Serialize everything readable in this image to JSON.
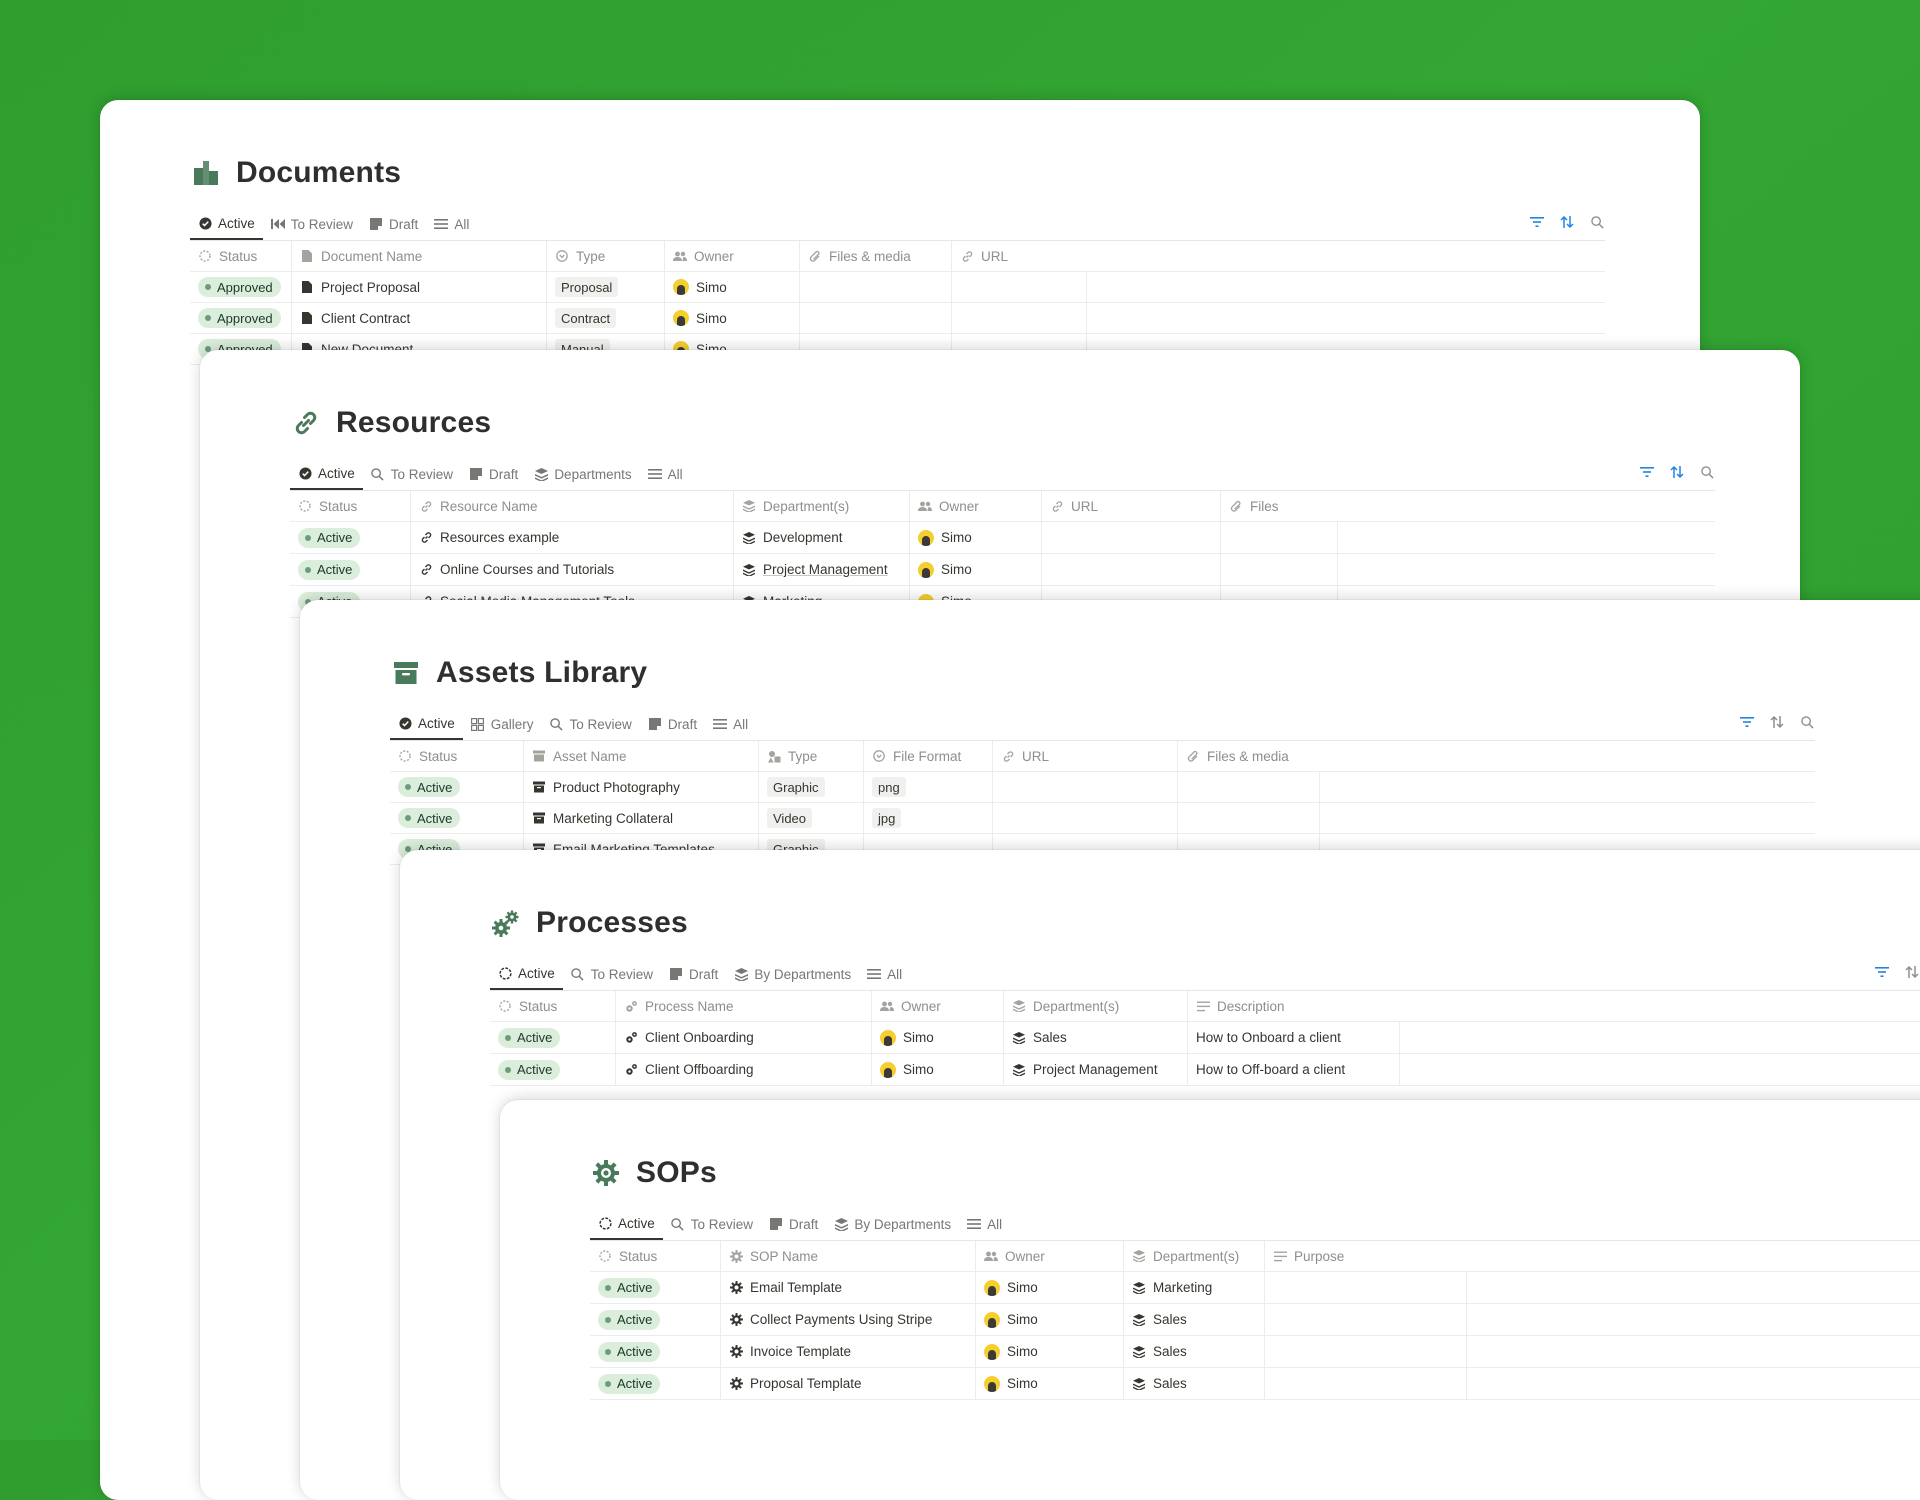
{
  "colors": {
    "background": "#2f9e2f",
    "badge_bg": "#dbeddb",
    "badge_dot": "#6c9b7d",
    "accent_icon": "#4a7a5c",
    "filter_blue": "#2383e2"
  },
  "documents": {
    "title": "Documents",
    "icon": "documents-icon",
    "tabs": [
      {
        "label": "Active",
        "icon": "check-circle-icon",
        "active": true
      },
      {
        "label": "To Review",
        "icon": "rewind-icon"
      },
      {
        "label": "Draft",
        "icon": "note-icon"
      },
      {
        "label": "All",
        "icon": "list-icon"
      }
    ],
    "columns": [
      {
        "label": "Status",
        "icon": "status-icon"
      },
      {
        "label": "Document Name",
        "icon": "page-icon"
      },
      {
        "label": "Type",
        "icon": "select-icon"
      },
      {
        "label": "Owner",
        "icon": "people-icon"
      },
      {
        "label": "Files & media",
        "icon": "paperclip-icon"
      },
      {
        "label": "URL",
        "icon": "link-icon"
      }
    ],
    "rows": [
      {
        "status": "Approved",
        "name": "Project Proposal",
        "type": "Proposal",
        "owner": "Simo"
      },
      {
        "status": "Approved",
        "name": "Client Contract",
        "type": "Contract",
        "owner": "Simo"
      },
      {
        "status": "Approved",
        "name": "New Document",
        "type": "Manual",
        "owner": "Simo"
      }
    ]
  },
  "resources": {
    "title": "Resources",
    "icon": "link-icon",
    "tabs": [
      {
        "label": "Active",
        "icon": "check-circle-icon",
        "active": true
      },
      {
        "label": "To Review",
        "icon": "search-icon"
      },
      {
        "label": "Draft",
        "icon": "note-icon"
      },
      {
        "label": "Departments",
        "icon": "layers-icon"
      },
      {
        "label": "All",
        "icon": "list-icon"
      }
    ],
    "columns": [
      {
        "label": "Status",
        "icon": "status-icon"
      },
      {
        "label": "Resource Name",
        "icon": "link-icon"
      },
      {
        "label": "Department(s)",
        "icon": "layers-icon"
      },
      {
        "label": "Owner",
        "icon": "people-icon"
      },
      {
        "label": "URL",
        "icon": "link-icon"
      },
      {
        "label": "Files",
        "icon": "paperclip-icon"
      }
    ],
    "rows": [
      {
        "status": "Active",
        "name": "Resources example",
        "department": "Development",
        "owner": "Simo"
      },
      {
        "status": "Active",
        "name": "Online Courses and Tutorials",
        "department": "Project Management",
        "owner": "Simo"
      },
      {
        "status": "Active",
        "name": "Social Media Management Tools",
        "department": "Marketing",
        "owner": "Simo"
      }
    ]
  },
  "assets": {
    "title": "Assets Library",
    "icon": "archive-icon",
    "tabs": [
      {
        "label": "Active",
        "icon": "check-circle-icon",
        "active": true
      },
      {
        "label": "Gallery",
        "icon": "gallery-icon"
      },
      {
        "label": "To Review",
        "icon": "search-icon"
      },
      {
        "label": "Draft",
        "icon": "note-icon"
      },
      {
        "label": "All",
        "icon": "list-icon"
      }
    ],
    "columns": [
      {
        "label": "Status",
        "icon": "status-icon"
      },
      {
        "label": "Asset Name",
        "icon": "archive-icon"
      },
      {
        "label": "Type",
        "icon": "shapes-icon"
      },
      {
        "label": "File Format",
        "icon": "select-icon"
      },
      {
        "label": "URL",
        "icon": "link-icon"
      },
      {
        "label": "Files & media",
        "icon": "paperclip-icon"
      }
    ],
    "rows": [
      {
        "status": "Active",
        "name": "Product Photography",
        "type": "Graphic",
        "format": "png"
      },
      {
        "status": "Active",
        "name": "Marketing Collateral",
        "type": "Video",
        "format": "jpg"
      },
      {
        "status": "Active",
        "name": "Email Marketing Templates",
        "type": "Graphic",
        "format": ""
      }
    ]
  },
  "processes": {
    "title": "Processes",
    "icon": "gears-icon",
    "tabs": [
      {
        "label": "Active",
        "icon": "dashed-circle-icon",
        "active": true
      },
      {
        "label": "To Review",
        "icon": "search-icon"
      },
      {
        "label": "Draft",
        "icon": "note-icon"
      },
      {
        "label": "By Departments",
        "icon": "layers-icon"
      },
      {
        "label": "All",
        "icon": "list-icon"
      }
    ],
    "columns": [
      {
        "label": "Status",
        "icon": "status-icon"
      },
      {
        "label": "Process Name",
        "icon": "gears-icon"
      },
      {
        "label": "Owner",
        "icon": "people-icon"
      },
      {
        "label": "Department(s)",
        "icon": "layers-icon"
      },
      {
        "label": "Description",
        "icon": "text-icon"
      }
    ],
    "rows": [
      {
        "status": "Active",
        "name": "Client Onboarding",
        "owner": "Simo",
        "department": "Sales",
        "description": "How to Onboard a client"
      },
      {
        "status": "Active",
        "name": "Client Offboarding",
        "owner": "Simo",
        "department": "Project Management",
        "description": "How to Off-board a client"
      }
    ]
  },
  "sops": {
    "title": "SOPs",
    "icon": "gear-icon",
    "tabs": [
      {
        "label": "Active",
        "icon": "dashed-circle-icon",
        "active": true
      },
      {
        "label": "To Review",
        "icon": "search-icon"
      },
      {
        "label": "Draft",
        "icon": "note-icon"
      },
      {
        "label": "By Departments",
        "icon": "layers-icon"
      },
      {
        "label": "All",
        "icon": "list-icon"
      }
    ],
    "columns": [
      {
        "label": "Status",
        "icon": "status-icon"
      },
      {
        "label": "SOP Name",
        "icon": "gear-icon"
      },
      {
        "label": "Owner",
        "icon": "people-icon"
      },
      {
        "label": "Department(s)",
        "icon": "layers-icon"
      },
      {
        "label": "Purpose",
        "icon": "text-icon"
      }
    ],
    "rows": [
      {
        "status": "Active",
        "name": "Email Template",
        "owner": "Simo",
        "department": "Marketing"
      },
      {
        "status": "Active",
        "name": "Collect Payments Using Stripe",
        "owner": "Simo",
        "department": "Sales"
      },
      {
        "status": "Active",
        "name": "Invoice Template",
        "owner": "Simo",
        "department": "Sales"
      },
      {
        "status": "Active",
        "name": "Proposal Template",
        "owner": "Simo",
        "department": "Sales"
      }
    ]
  }
}
